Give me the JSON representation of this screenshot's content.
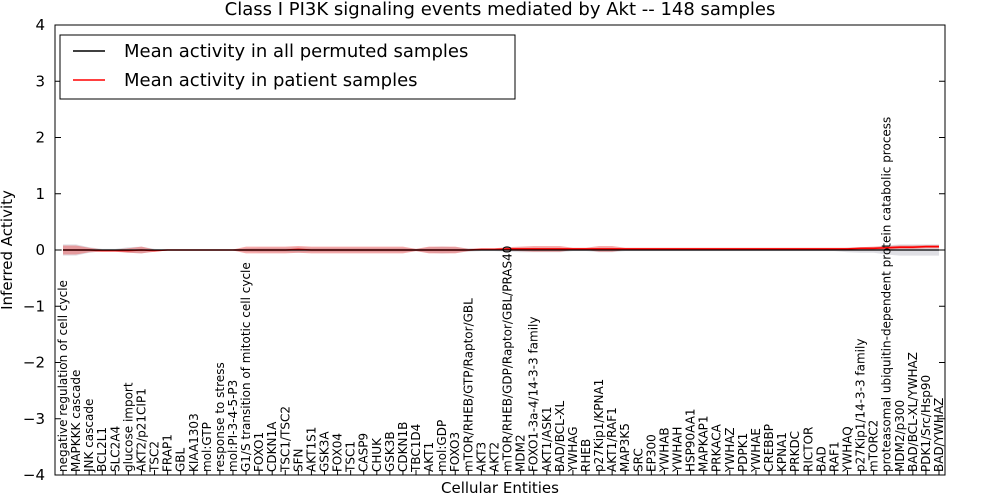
{
  "chart_data": {
    "type": "line",
    "title": "Class I PI3K signaling events mediated by Akt -- 148 samples",
    "xlabel": "Cellular Entities",
    "ylabel": "Inferred Activity",
    "ylim": [
      -4,
      4
    ],
    "yticks": [
      "4",
      "3",
      "2",
      "1",
      "0",
      "−1",
      "−2",
      "−3",
      "−4"
    ],
    "legend_position": "top-left",
    "categories": [
      "negative regulation of cell cycle",
      "MAPKKK cascade",
      "JNK cascade",
      "BCL2L1",
      "SLC2A4",
      "glucose import",
      "AKT2/p21CIP1",
      "TSC2",
      "FRAP1",
      "GBL",
      "KIAA1303",
      "mol:GTP",
      "response to stress",
      "mol:PI-3-4-5-P3",
      "G1/S transition of mitotic cell cycle",
      "FOXO1",
      "CDKN1A",
      "TSC1/TSC2",
      "SFN",
      "AKT1S1",
      "GSK3A",
      "FOX04",
      "TSC1",
      "CASP9",
      "CHUK",
      "GSK3B",
      "CDKN1B",
      "TBC1D4",
      "AKT1",
      "mol:GDP",
      "FOXO3",
      "mTOR/RHEB/GTP/Raptor/GBL",
      "AKT3",
      "AKT2",
      "mTOR/RHEB/GDP/Raptor/GBL/PRAS40",
      "MDM2",
      "FOXO1-3a-4/14-3-3 family",
      "AKT1/ASK1",
      "BAD/BCL-XL",
      "YWHAG",
      "RHEB",
      "p27Kip1/KPNA1",
      "AKT1/RAF1",
      "MAP3K5",
      "SRC",
      "EP300",
      "YWHAB",
      "YWHAH",
      "HSP90AA1",
      "MAPKAP1",
      "PRKACA",
      "YWHAZ",
      "PDPK1",
      "YWHAE",
      "CREBBP",
      "KPNA1",
      "PRKDC",
      "RICTOR",
      "BAD",
      "RAF1",
      "YWHAQ",
      "p27Kip1/14-3-3 family",
      "mTORC2",
      "proteasomal ubiquitin-dependent protein catabolic process",
      "MDM2/p300",
      "BAD/BCL-XL/YWHAZ",
      "PDK1/Src/Hsp90",
      "BAD/YWHAZ"
    ],
    "series": [
      {
        "name": "Mean activity in all permuted samples",
        "color": "#000000",
        "values": [
          0.0,
          0.0,
          0.0,
          0.0,
          0.0,
          0.0,
          0.0,
          0.0,
          0.0,
          0.0,
          0.0,
          0.0,
          0.0,
          0.0,
          0.0,
          0.0,
          0.0,
          0.0,
          0.0,
          0.0,
          0.0,
          0.0,
          0.0,
          0.0,
          0.0,
          0.0,
          0.0,
          0.0,
          0.0,
          0.0,
          0.0,
          0.0,
          0.0,
          0.0,
          0.0,
          0.0,
          0.0,
          0.0,
          0.0,
          0.0,
          0.0,
          0.0,
          0.0,
          0.0,
          0.0,
          0.0,
          0.0,
          0.0,
          0.0,
          0.0,
          0.0,
          0.0,
          0.0,
          0.0,
          0.0,
          0.0,
          0.0,
          0.0,
          0.0,
          0.0,
          0.0,
          0.0,
          0.0,
          0.0,
          0.0,
          0.0,
          0.0,
          0.0
        ],
        "band": [
          0.1,
          0.1,
          0.05,
          0.02,
          0.02,
          0.05,
          0.06,
          0.02,
          0.01,
          0.01,
          0.01,
          0.01,
          0.01,
          0.01,
          0.03,
          0.04,
          0.04,
          0.04,
          0.05,
          0.04,
          0.04,
          0.04,
          0.04,
          0.04,
          0.04,
          0.04,
          0.04,
          0.02,
          0.05,
          0.06,
          0.05,
          0.03,
          0.02,
          0.02,
          0.03,
          0.04,
          0.04,
          0.04,
          0.04,
          0.02,
          0.02,
          0.04,
          0.04,
          0.02,
          0.02,
          0.02,
          0.02,
          0.02,
          0.02,
          0.02,
          0.02,
          0.02,
          0.02,
          0.02,
          0.02,
          0.02,
          0.02,
          0.02,
          0.02,
          0.02,
          0.04,
          0.05,
          0.05,
          0.08,
          0.1,
          0.1,
          0.1,
          0.1
        ]
      },
      {
        "name": "Mean activity in patient samples",
        "color": "#ff0000",
        "values": [
          0.0,
          0.0,
          0.0,
          -0.01,
          -0.01,
          -0.01,
          0.0,
          -0.01,
          0.0,
          0.0,
          0.0,
          0.0,
          0.0,
          0.0,
          0.0,
          0.0,
          0.0,
          0.0,
          0.01,
          0.0,
          0.0,
          0.0,
          0.0,
          0.0,
          0.0,
          0.0,
          0.0,
          0.0,
          0.0,
          0.0,
          0.0,
          0.0,
          0.01,
          0.01,
          0.02,
          0.02,
          0.02,
          0.02,
          0.02,
          0.02,
          0.02,
          0.02,
          0.02,
          0.02,
          0.02,
          0.02,
          0.02,
          0.02,
          0.02,
          0.02,
          0.02,
          0.02,
          0.02,
          0.02,
          0.02,
          0.02,
          0.02,
          0.02,
          0.02,
          0.02,
          0.02,
          0.03,
          0.03,
          0.04,
          0.05,
          0.05,
          0.06,
          0.06
        ],
        "band": [
          0.08,
          0.08,
          0.04,
          0.02,
          0.02,
          0.04,
          0.06,
          0.02,
          0.01,
          0.01,
          0.01,
          0.01,
          0.01,
          0.01,
          0.06,
          0.06,
          0.06,
          0.06,
          0.06,
          0.06,
          0.06,
          0.06,
          0.06,
          0.06,
          0.06,
          0.06,
          0.06,
          0.02,
          0.06,
          0.06,
          0.06,
          0.02,
          0.02,
          0.02,
          0.03,
          0.04,
          0.05,
          0.05,
          0.05,
          0.02,
          0.02,
          0.05,
          0.05,
          0.02,
          0.02,
          0.02,
          0.02,
          0.02,
          0.02,
          0.02,
          0.02,
          0.02,
          0.02,
          0.02,
          0.02,
          0.02,
          0.02,
          0.02,
          0.02,
          0.02,
          0.02,
          0.02,
          0.03,
          0.03,
          0.03,
          0.03,
          0.03,
          0.03
        ]
      }
    ]
  }
}
